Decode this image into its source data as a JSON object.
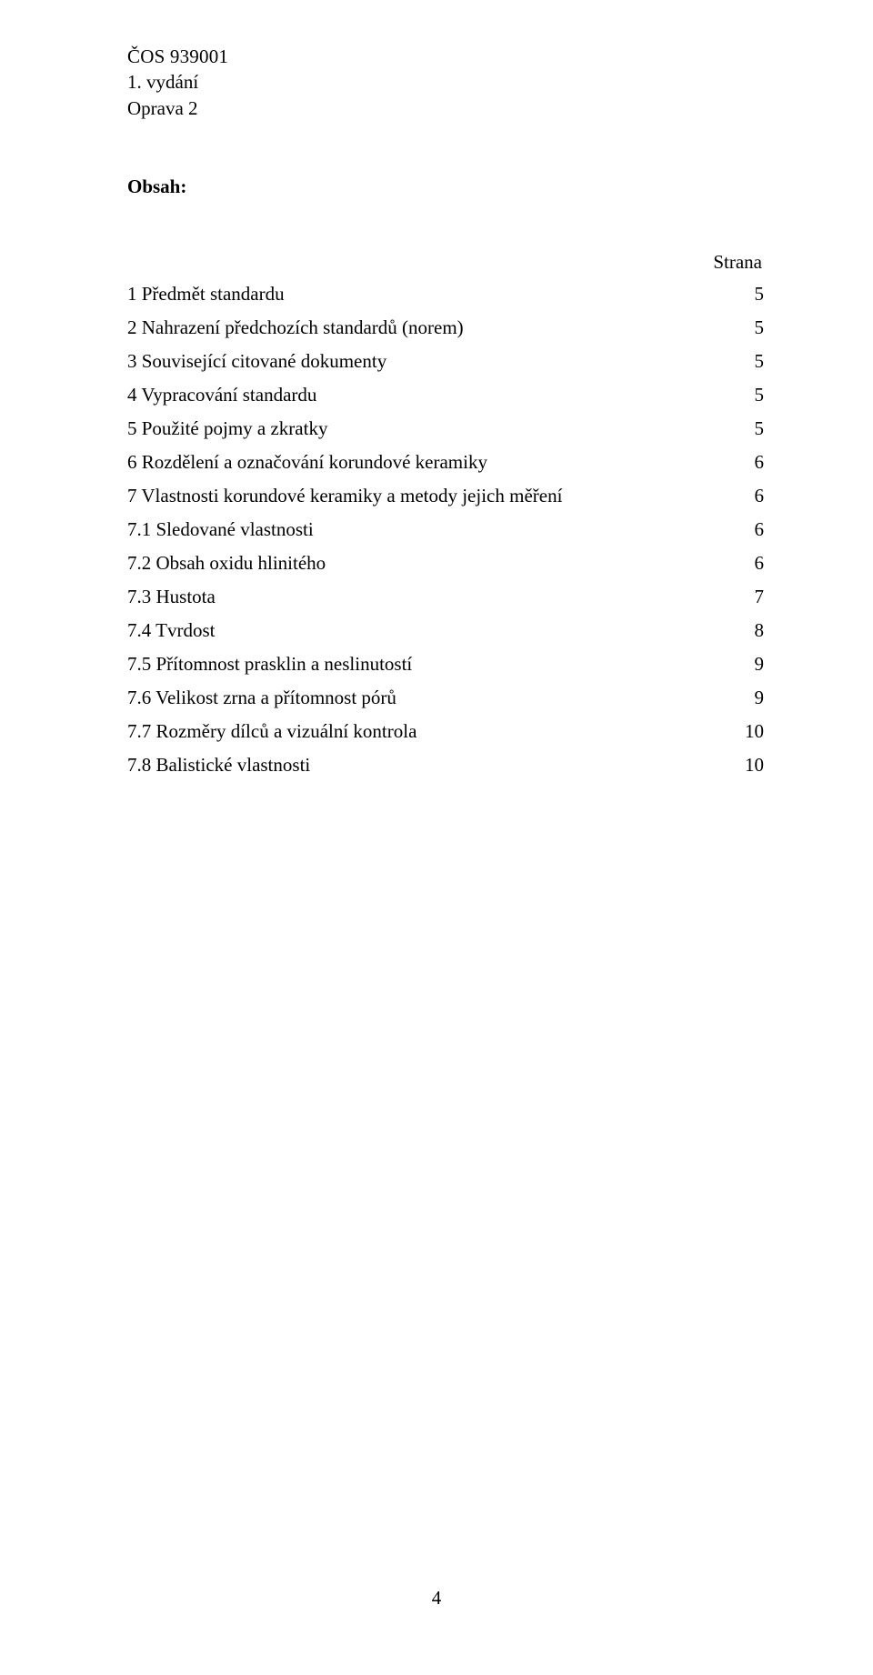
{
  "header": {
    "code": "ČOS 939001",
    "edition": "1. vydání",
    "correction": "Oprava 2"
  },
  "toc": {
    "title": "Obsah",
    "page_column_label": "Strana",
    "items": [
      {
        "num": "1",
        "label": "Předmět standardu",
        "page": "5"
      },
      {
        "num": "2",
        "label": "Nahrazení předchozích standardů (norem)",
        "page": "5"
      },
      {
        "num": "3",
        "label": "Související citované  dokumenty",
        "page": "5"
      },
      {
        "num": "4",
        "label": "Vypracování standardu",
        "page": "5"
      },
      {
        "num": "5",
        "label": "Použité pojmy a zkratky",
        "page": "5"
      },
      {
        "num": "6",
        "label": "Rozdělení a označování korundové keramiky",
        "page": "6"
      },
      {
        "num": "7",
        "label": "Vlastnosti korundové keramiky a metody jejich měření",
        "page": "6"
      },
      {
        "num": "7.1",
        "label": "Sledované vlastnosti",
        "page": "6"
      },
      {
        "num": "7.2",
        "label": "Obsah oxidu hlinitého",
        "page": "6"
      },
      {
        "num": "7.3",
        "label": " Hustota",
        "page": "7"
      },
      {
        "num": "7.4",
        "label": " Tvrdost",
        "page": "8"
      },
      {
        "num": "7.5",
        "label": " Přítomnost prasklin a neslinutostí",
        "page": "9"
      },
      {
        "num": "7.6",
        "label": " Velikost zrna a přítomnost pórů",
        "page": "9"
      },
      {
        "num": "7.7",
        "label": " Rozměry dílců a vizuální kontrola",
        "page": "10"
      },
      {
        "num": "7.8",
        "label": " Balistické vlastnosti",
        "page": "10"
      }
    ]
  },
  "footer": {
    "page_number": "4"
  }
}
